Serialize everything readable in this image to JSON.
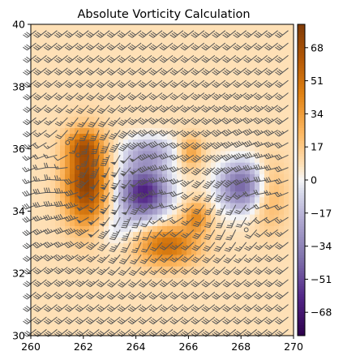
{
  "chart_data": {
    "type": "heatmap",
    "title": "Absolute Vorticity Calculation",
    "xlabel": "",
    "ylabel": "",
    "xlim": [
      260,
      270
    ],
    "ylim": [
      30,
      40
    ],
    "x_ticks": [
      260,
      262,
      264,
      266,
      268,
      270
    ],
    "y_ticks": [
      30,
      32,
      34,
      36,
      38,
      40
    ],
    "colorbar": {
      "colormap": "PuOr_r",
      "range": [
        -80,
        80
      ],
      "ticks": [
        68,
        51,
        34,
        17,
        0,
        -17,
        -34,
        -51,
        -68
      ],
      "tick_labels": [
        "68",
        "51",
        "34",
        "17",
        "0",
        "−17",
        "−34",
        "−51",
        "−68"
      ],
      "colors": {
        "low": "#2d004b",
        "mid": "#f7f7f7",
        "high": "#7f3b08"
      }
    },
    "vorticity_features": [
      {
        "x": 262.1,
        "y": 34.9,
        "value": 68,
        "sx": 0.55,
        "sy": 0.95
      },
      {
        "x": 262.0,
        "y": 36.1,
        "value": 30,
        "sx": 0.45,
        "sy": 0.35
      },
      {
        "x": 264.3,
        "y": 34.6,
        "value": -72,
        "sx": 0.65,
        "sy": 0.6
      },
      {
        "x": 264.5,
        "y": 35.9,
        "value": -28,
        "sx": 0.7,
        "sy": 0.35
      },
      {
        "x": 265.2,
        "y": 32.9,
        "value": 45,
        "sx": 0.8,
        "sy": 0.45
      },
      {
        "x": 266.3,
        "y": 33.8,
        "value": 32,
        "sx": 0.35,
        "sy": 0.35
      },
      {
        "x": 266.1,
        "y": 35.9,
        "value": 25,
        "sx": 0.3,
        "sy": 0.35
      },
      {
        "x": 268.0,
        "y": 34.8,
        "value": -52,
        "sx": 0.6,
        "sy": 0.55
      },
      {
        "x": 269.1,
        "y": 34.5,
        "value": 18,
        "sx": 0.45,
        "sy": 0.8
      },
      {
        "x": 263.2,
        "y": 33.4,
        "value": -12,
        "sx": 0.6,
        "sy": 0.4
      }
    ],
    "background_value": 8,
    "wind_barbs": {
      "color": "#555555",
      "grid_spacing_deg": 0.4,
      "background_wind": {
        "u": 25,
        "v": 20
      },
      "vortices": [
        {
          "x": 262.2,
          "y": 35.0,
          "strength": 35,
          "direction": "cyclonic"
        },
        {
          "x": 264.3,
          "y": 34.5,
          "strength": 30,
          "direction": "anticyclonic"
        },
        {
          "x": 268.0,
          "y": 34.8,
          "strength": 25,
          "direction": "anticyclonic"
        }
      ],
      "calm_points": [
        {
          "x": 261.3,
          "y": 36.1
        },
        {
          "x": 261.8,
          "y": 35.6
        },
        {
          "x": 268.3,
          "y": 33.5
        }
      ]
    }
  }
}
